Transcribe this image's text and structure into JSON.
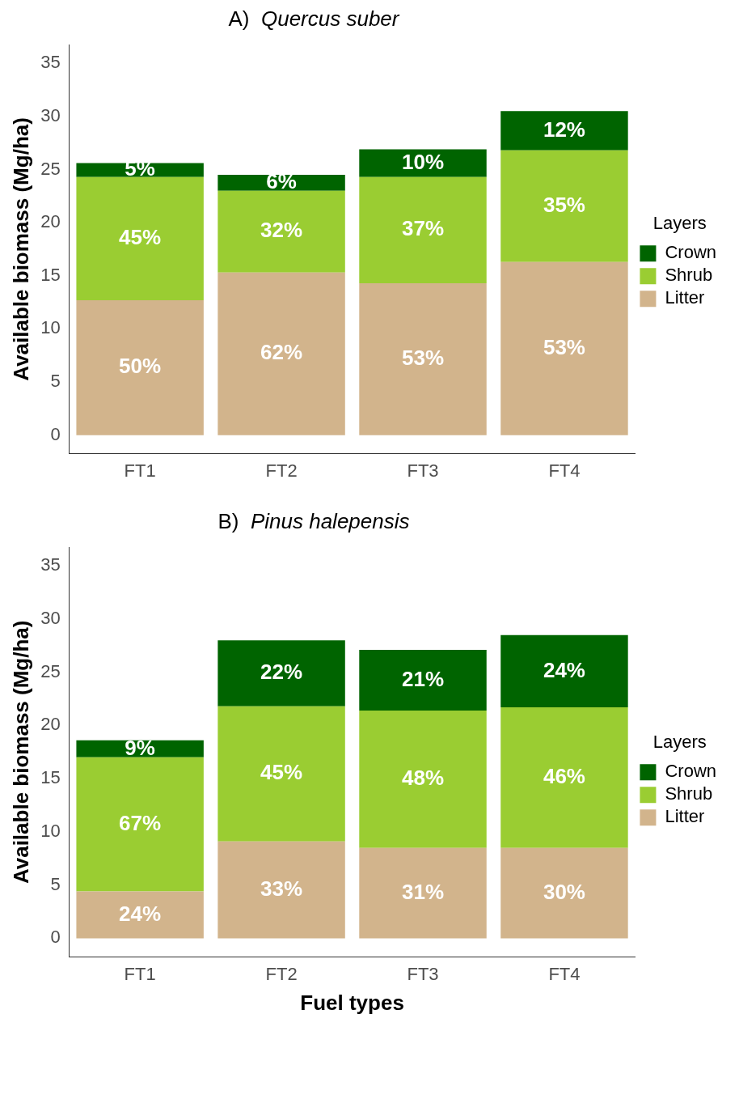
{
  "chart_data": [
    {
      "type": "bar",
      "title": "A)  Quercus suber",
      "ylabel": "Available biomass (Mg/ha)",
      "legend_title": "Layers",
      "legend": "right",
      "grid": false,
      "stacked": true,
      "categories": [
        "FT1",
        "FT2",
        "FT3",
        "FT4"
      ],
      "ylim": [
        -1.75,
        36.75
      ],
      "yticks": [
        0,
        5,
        10,
        15,
        20,
        25,
        30,
        35
      ],
      "series": [
        {
          "name": "Litter",
          "color": "#d2b48c",
          "values": [
            12.7,
            15.3,
            14.3,
            16.3
          ]
        },
        {
          "name": "Shrub",
          "color": "#9acd32",
          "values": [
            11.6,
            7.7,
            10.0,
            10.5
          ]
        },
        {
          "name": "Crown",
          "color": "#006400",
          "values": [
            1.3,
            1.5,
            2.6,
            3.7
          ]
        }
      ],
      "annotations": [
        "50%",
        "62%",
        "53%",
        "53%",
        "45%",
        "32%",
        "37%",
        "35%",
        "5%",
        "6%",
        "10%",
        "12%"
      ]
    },
    {
      "type": "bar",
      "title": "B)  Pinus halepensis",
      "ylabel": "Available biomass (Mg/ha)",
      "xlabel": "Fuel types",
      "legend_title": "Layers",
      "legend": "right",
      "grid": false,
      "stacked": true,
      "categories": [
        "FT1",
        "FT2",
        "FT3",
        "FT4"
      ],
      "ylim": [
        -1.75,
        36.75
      ],
      "yticks": [
        0,
        5,
        10,
        15,
        20,
        25,
        30,
        35
      ],
      "series": [
        {
          "name": "Litter",
          "color": "#d2b48c",
          "values": [
            4.4,
            9.1,
            8.5,
            8.5
          ]
        },
        {
          "name": "Shrub",
          "color": "#9acd32",
          "values": [
            12.6,
            12.7,
            12.9,
            13.2
          ]
        },
        {
          "name": "Crown",
          "color": "#006400",
          "values": [
            1.6,
            6.2,
            5.7,
            6.8
          ]
        }
      ],
      "annotations": [
        "24%",
        "33%",
        "31%",
        "30%",
        "67%",
        "45%",
        "48%",
        "46%",
        "9%",
        "22%",
        "21%",
        "24%"
      ]
    }
  ]
}
